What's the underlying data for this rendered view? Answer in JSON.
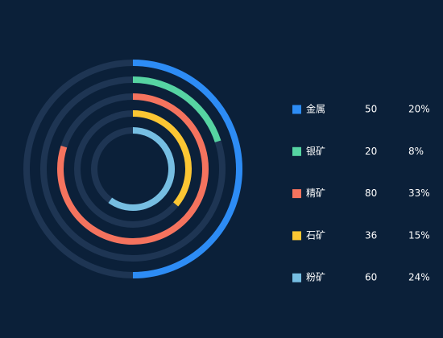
{
  "chart_data": {
    "type": "radial_bar",
    "categories": [
      "金属",
      "银矿",
      "精矿",
      "石矿",
      "粉矿"
    ],
    "values": [
      50,
      20,
      80,
      36,
      60
    ],
    "shares": [
      "20%",
      "8%",
      "33%",
      "15%",
      "24%"
    ],
    "colors": [
      "#2d8cf5",
      "#56d4a2",
      "#f5735e",
      "#fbc633",
      "#76bee2"
    ],
    "xlim": [
      0,
      100
    ]
  }
}
